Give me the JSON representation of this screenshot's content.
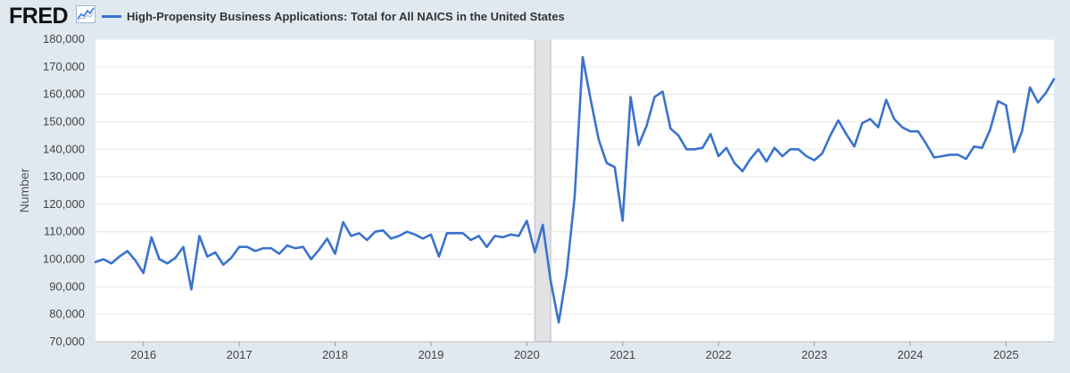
{
  "header": {
    "logo_text": "FRED",
    "logo_icon": "line-chart-icon"
  },
  "colors": {
    "page_bg": "#e1e9f0",
    "plot_bg": "#ffffff",
    "line": "#3a73cc",
    "recession": "#e1e1e6",
    "grid": "#e6e6e6"
  },
  "chart_data": {
    "type": "line",
    "title": "",
    "xlabel": "",
    "ylabel": "Number",
    "ylim": [
      70000,
      180000
    ],
    "yticks": [
      70000,
      80000,
      90000,
      100000,
      110000,
      120000,
      130000,
      140000,
      150000,
      160000,
      170000,
      180000
    ],
    "ytick_labels": [
      "70,000",
      "80,000",
      "90,000",
      "100,000",
      "110,000",
      "120,000",
      "130,000",
      "140,000",
      "150,000",
      "160,000",
      "170,000",
      "180,000"
    ],
    "xlim": [
      "2015-07",
      "2025-07"
    ],
    "xticks": [
      "2016-01",
      "2017-01",
      "2018-01",
      "2019-01",
      "2020-01",
      "2021-01",
      "2022-01",
      "2023-01",
      "2024-01",
      "2025-01"
    ],
    "xtick_labels": [
      "2016",
      "2017",
      "2018",
      "2019",
      "2020",
      "2021",
      "2022",
      "2023",
      "2024",
      "2025"
    ],
    "grid": true,
    "legend": "top-left",
    "recessions": [
      {
        "start": "2020-02",
        "end": "2020-04"
      }
    ],
    "series": [
      {
        "name": "High-Propensity Business Applications: Total for All NAICS in the United States",
        "x": [
          "2015-07",
          "2015-08",
          "2015-09",
          "2015-10",
          "2015-11",
          "2015-12",
          "2016-01",
          "2016-02",
          "2016-03",
          "2016-04",
          "2016-05",
          "2016-06",
          "2016-07",
          "2016-08",
          "2016-09",
          "2016-10",
          "2016-11",
          "2016-12",
          "2017-01",
          "2017-02",
          "2017-03",
          "2017-04",
          "2017-05",
          "2017-06",
          "2017-07",
          "2017-08",
          "2017-09",
          "2017-10",
          "2017-11",
          "2017-12",
          "2018-01",
          "2018-02",
          "2018-03",
          "2018-04",
          "2018-05",
          "2018-06",
          "2018-07",
          "2018-08",
          "2018-09",
          "2018-10",
          "2018-11",
          "2018-12",
          "2019-01",
          "2019-02",
          "2019-03",
          "2019-04",
          "2019-05",
          "2019-06",
          "2019-07",
          "2019-08",
          "2019-09",
          "2019-10",
          "2019-11",
          "2019-12",
          "2020-01",
          "2020-02",
          "2020-03",
          "2020-04",
          "2020-05",
          "2020-06",
          "2020-07",
          "2020-08",
          "2020-09",
          "2020-10",
          "2020-11",
          "2020-12",
          "2021-01",
          "2021-02",
          "2021-03",
          "2021-04",
          "2021-05",
          "2021-06",
          "2021-07",
          "2021-08",
          "2021-09",
          "2021-10",
          "2021-11",
          "2021-12",
          "2022-01",
          "2022-02",
          "2022-03",
          "2022-04",
          "2022-05",
          "2022-06",
          "2022-07",
          "2022-08",
          "2022-09",
          "2022-10",
          "2022-11",
          "2022-12",
          "2023-01",
          "2023-02",
          "2023-03",
          "2023-04",
          "2023-05",
          "2023-06",
          "2023-07",
          "2023-08",
          "2023-09",
          "2023-10",
          "2023-11",
          "2023-12",
          "2024-01",
          "2024-02",
          "2024-03",
          "2024-04",
          "2024-05",
          "2024-06",
          "2024-07",
          "2024-08",
          "2024-09",
          "2024-10",
          "2024-11",
          "2024-12",
          "2025-01",
          "2025-02",
          "2025-03",
          "2025-04",
          "2025-05",
          "2025-06",
          "2025-07"
        ],
        "values": [
          99000,
          100000,
          98500,
          101000,
          103000,
          99500,
          95000,
          108000,
          100000,
          98500,
          100500,
          104500,
          89000,
          108500,
          101000,
          102500,
          98000,
          100500,
          104500,
          104500,
          103000,
          104000,
          104000,
          102000,
          105000,
          104000,
          104500,
          100000,
          103500,
          107500,
          102000,
          113500,
          108500,
          109500,
          107000,
          110000,
          110500,
          107500,
          108500,
          110000,
          109000,
          107500,
          109000,
          101000,
          109500,
          109500,
          109500,
          107000,
          108500,
          104500,
          108500,
          108000,
          109000,
          108500,
          114000,
          102500,
          112500,
          92000,
          77000,
          95000,
          123000,
          173500,
          158000,
          143500,
          135000,
          133500,
          114000,
          159000,
          141500,
          148500,
          159000,
          161000,
          147500,
          145000,
          140000,
          140000,
          140500,
          145500,
          137500,
          140500,
          135000,
          132000,
          136500,
          140000,
          135500,
          140500,
          137500,
          140000,
          140000,
          137500,
          136000,
          138500,
          145000,
          150500,
          145500,
          141000,
          149500,
          151000,
          148000,
          158000,
          151000,
          148000,
          146500,
          146500,
          142000,
          137000,
          137500,
          138000,
          138000,
          136500,
          141000,
          140500,
          147000,
          157500,
          156000,
          139000,
          146500,
          162500,
          157000,
          160500,
          165500
        ]
      }
    ]
  }
}
